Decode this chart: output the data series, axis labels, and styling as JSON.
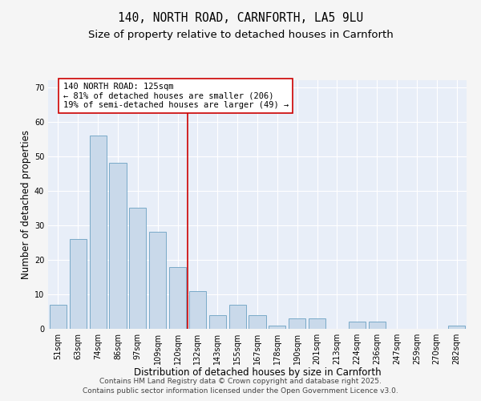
{
  "title": "140, NORTH ROAD, CARNFORTH, LA5 9LU",
  "subtitle": "Size of property relative to detached houses in Carnforth",
  "xlabel": "Distribution of detached houses by size in Carnforth",
  "ylabel": "Number of detached properties",
  "categories": [
    "51sqm",
    "63sqm",
    "74sqm",
    "86sqm",
    "97sqm",
    "109sqm",
    "120sqm",
    "132sqm",
    "143sqm",
    "155sqm",
    "167sqm",
    "178sqm",
    "190sqm",
    "201sqm",
    "213sqm",
    "224sqm",
    "236sqm",
    "247sqm",
    "259sqm",
    "270sqm",
    "282sqm"
  ],
  "values": [
    7,
    26,
    56,
    48,
    35,
    28,
    18,
    11,
    4,
    7,
    4,
    1,
    3,
    3,
    0,
    2,
    2,
    0,
    0,
    0,
    1
  ],
  "bar_color": "#c9d9ea",
  "bar_edge_color": "#7aaac8",
  "vline_color": "#cc0000",
  "annotation_line1": "140 NORTH ROAD: 125sqm",
  "annotation_line2": "← 81% of detached houses are smaller (206)",
  "annotation_line3": "19% of semi-detached houses are larger (49) →",
  "annotation_box_color": "#ffffff",
  "annotation_box_edge": "#cc0000",
  "ylim": [
    0,
    72
  ],
  "yticks": [
    0,
    10,
    20,
    30,
    40,
    50,
    60,
    70
  ],
  "plot_bg": "#e8eef8",
  "fig_bg": "#f5f5f5",
  "title_fontsize": 10.5,
  "subtitle_fontsize": 9.5,
  "xlabel_fontsize": 8.5,
  "ylabel_fontsize": 8.5,
  "tick_fontsize": 7,
  "footer_fontsize": 6.5,
  "footer_line1": "Contains HM Land Registry data © Crown copyright and database right 2025.",
  "footer_line2": "Contains public sector information licensed under the Open Government Licence v3.0."
}
